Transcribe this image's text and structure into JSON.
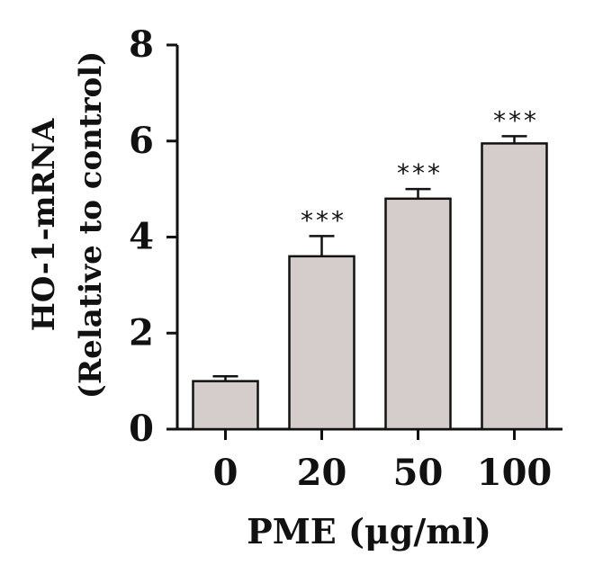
{
  "chart_data": {
    "type": "bar",
    "categories": [
      "0",
      "20",
      "50",
      "100"
    ],
    "values": [
      1.0,
      3.6,
      4.8,
      5.95
    ],
    "errors": [
      0.1,
      0.42,
      0.2,
      0.15
    ],
    "significance": [
      "",
      "***",
      "***",
      "***"
    ],
    "xlabel": "PME (μg/ml)",
    "ylabel_line1": "HO-1-mRNA",
    "ylabel_line2": "(Relative to control)",
    "ylim": [
      0,
      8
    ],
    "yticks": [
      0,
      2,
      4,
      6,
      8
    ],
    "grid": false,
    "bar_color": "#d5cdcb",
    "edge_color": "#111111"
  }
}
